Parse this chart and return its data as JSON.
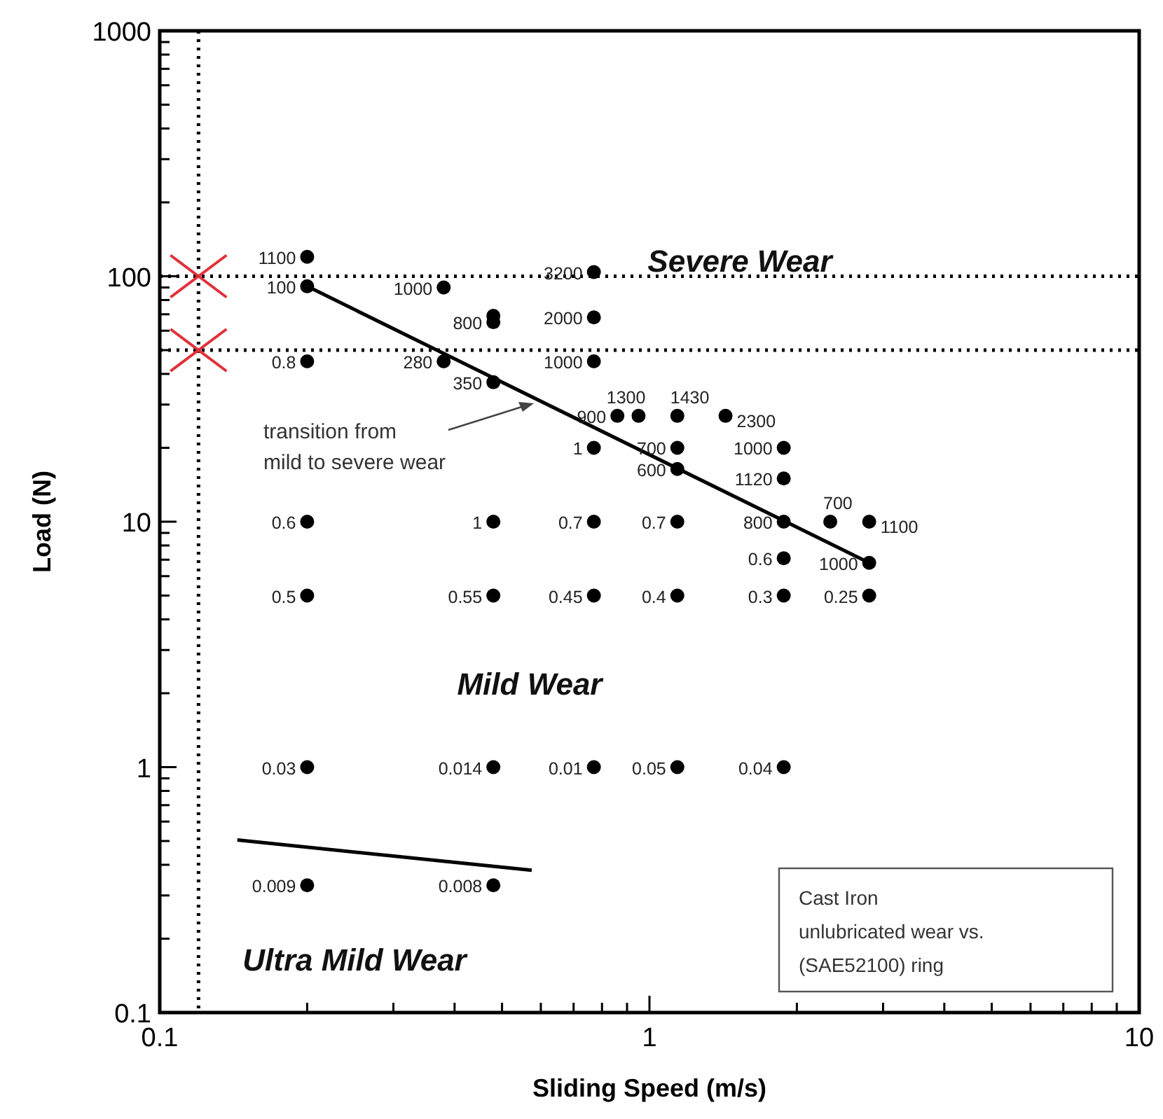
{
  "chart_data": {
    "type": "scatter",
    "xlabel": "Sliding Speed (m/s)",
    "ylabel": "Load (N)",
    "log": "xy",
    "grid": false,
    "marker": "circle",
    "xlim": [
      0.1,
      10
    ],
    "ylim": [
      0.1,
      1000
    ],
    "xticks": [
      0.1,
      {
        "value": 0.2,
        "label": null
      },
      {
        "value": 0.3,
        "label": null
      },
      {
        "value": 0.4,
        "label": null
      },
      {
        "value": 0.5,
        "label": null
      },
      {
        "value": 0.6,
        "label": null
      },
      {
        "value": 0.7,
        "label": null
      },
      {
        "value": 0.8,
        "label": null
      },
      {
        "value": 0.9,
        "label": null
      },
      1,
      {
        "value": 2,
        "label": null
      },
      {
        "value": 3,
        "label": null
      },
      {
        "value": 4,
        "label": null
      },
      {
        "value": 5,
        "label": null
      },
      {
        "value": 6,
        "label": null
      },
      {
        "value": 7,
        "label": null
      },
      {
        "value": 8,
        "label": null
      },
      {
        "value": 9,
        "label": null
      },
      10
    ],
    "yticks": [
      0.1,
      {
        "value": 0.2,
        "label": null
      },
      {
        "value": 0.3,
        "label": null
      },
      {
        "value": 0.4,
        "label": null
      },
      {
        "value": 0.5,
        "label": null
      },
      {
        "value": 0.6,
        "label": null
      },
      {
        "value": 0.7,
        "label": null
      },
      {
        "value": 0.8,
        "label": null
      },
      {
        "value": 0.9,
        "label": null
      },
      1,
      {
        "value": 2,
        "label": null
      },
      {
        "value": 3,
        "label": null
      },
      {
        "value": 4,
        "label": null
      },
      {
        "value": 5,
        "label": null
      },
      {
        "value": 6,
        "label": null
      },
      {
        "value": 7,
        "label": null
      },
      {
        "value": 8,
        "label": null
      },
      {
        "value": 9,
        "label": null
      },
      10,
      {
        "value": 20,
        "label": null
      },
      {
        "value": 30,
        "label": null
      },
      {
        "value": 40,
        "label": null
      },
      {
        "value": 50,
        "label": null
      },
      {
        "value": 60,
        "label": null
      },
      {
        "value": 70,
        "label": null
      },
      {
        "value": 80,
        "label": null
      },
      {
        "value": 90,
        "label": null
      },
      100,
      {
        "value": 200,
        "label": null
      },
      {
        "value": 300,
        "label": null
      },
      {
        "value": 400,
        "label": null
      },
      {
        "value": 500,
        "label": null
      },
      {
        "value": 600,
        "label": null
      },
      {
        "value": 700,
        "label": null
      },
      {
        "value": 800,
        "label": null
      },
      {
        "value": 900,
        "label": null
      },
      1000
    ],
    "series": [
      {
        "color": "#000000",
        "x": [
          0.2,
          0.2,
          0.2,
          0.2,
          0.2,
          0.2,
          0.2,
          0.38,
          0.38,
          0.48,
          0.48,
          0.48,
          0.48,
          0.48,
          0.48,
          0.48,
          0.77,
          0.77,
          0.77,
          0.77,
          0.77,
          0.77,
          0.77,
          0.86,
          0.95,
          1.14,
          1.14,
          1.14,
          1.14,
          1.14,
          1.14,
          1.43,
          1.88,
          1.88,
          1.88,
          1.88,
          1.88,
          1.88,
          2.34,
          2.81,
          2.81,
          2.81
        ],
        "values": [
          120,
          91,
          45,
          10,
          5,
          1,
          0.33,
          90,
          45,
          69,
          65,
          37,
          10,
          5,
          1,
          0.33,
          104,
          68,
          45,
          20,
          10,
          5,
          1,
          27,
          27,
          27,
          20,
          16.4,
          10,
          5,
          1,
          27,
          20,
          15,
          10,
          7.1,
          5,
          1,
          10,
          10,
          6.8,
          5
        ]
      },
      {
        "type": "line",
        "color": "#000000",
        "marker": "none",
        "x": [
          0.2,
          2.81
        ],
        "values": [
          91,
          6.8
        ]
      },
      {
        "type": "line",
        "color": "#000000",
        "marker": "none",
        "x": [
          0.144,
          0.575
        ],
        "values": [
          0.505,
          0.38
        ]
      }
    ],
    "ref_lines": [
      {
        "axis": "y",
        "value": 100,
        "line_style": "dotted",
        "color": "#000000"
      },
      {
        "axis": "y",
        "value": 50,
        "line_style": "dotted",
        "color": "#000000"
      },
      {
        "axis": "x",
        "value": 0.12,
        "line_style": "dotted",
        "color": "#000000"
      }
    ],
    "annotations": [
      "Severe Wear",
      "Mild Wear",
      "Ultra Mild Wear",
      "transition from mild to severe wear",
      "Cast Iron unlubricated wear vs. (SAE52100) ring",
      {
        "text": "1100",
        "x": 0.2,
        "y": 120
      },
      {
        "text": "100",
        "x": 0.2,
        "y": 91
      },
      {
        "text": "0.8",
        "x": 0.2,
        "y": 45
      },
      {
        "text": "0.6",
        "x": 0.2,
        "y": 10
      },
      {
        "text": "0.5",
        "x": 0.2,
        "y": 5
      },
      {
        "text": "0.03",
        "x": 0.2,
        "y": 1
      },
      {
        "text": "0.009",
        "x": 0.2,
        "y": 0.33
      },
      {
        "text": "1000",
        "x": 0.38,
        "y": 90
      },
      {
        "text": "280",
        "x": 0.38,
        "y": 45
      },
      {
        "text": "800",
        "x": 0.48,
        "y": 65
      },
      {
        "text": "350",
        "x": 0.48,
        "y": 37
      },
      {
        "text": "1",
        "x": 0.48,
        "y": 10
      },
      {
        "text": "0.55",
        "x": 0.48,
        "y": 5
      },
      {
        "text": "0.014",
        "x": 0.48,
        "y": 1
      },
      {
        "text": "0.008",
        "x": 0.48,
        "y": 0.33
      },
      {
        "text": "3200",
        "x": 0.77,
        "y": 104
      },
      {
        "text": "2000",
        "x": 0.77,
        "y": 68
      },
      {
        "text": "1000",
        "x": 0.77,
        "y": 45
      },
      {
        "text": "1",
        "x": 0.77,
        "y": 20
      },
      {
        "text": "0.7",
        "x": 0.77,
        "y": 10
      },
      {
        "text": "0.45",
        "x": 0.77,
        "y": 5
      },
      {
        "text": "0.01",
        "x": 0.77,
        "y": 1
      },
      {
        "text": "900",
        "x": 0.86,
        "y": 27
      },
      {
        "text": "1300",
        "x": 0.95,
        "y": 27
      },
      {
        "text": "1430",
        "x": 1.14,
        "y": 27
      },
      {
        "text": "700",
        "x": 1.14,
        "y": 20
      },
      {
        "text": "600",
        "x": 1.14,
        "y": 16.4
      },
      {
        "text": "0.7",
        "x": 1.14,
        "y": 10
      },
      {
        "text": "0.4",
        "x": 1.14,
        "y": 5
      },
      {
        "text": "0.05",
        "x": 1.14,
        "y": 1
      },
      {
        "text": "2300",
        "x": 1.43,
        "y": 27
      },
      {
        "text": "1000",
        "x": 1.88,
        "y": 20
      },
      {
        "text": "1120",
        "x": 1.88,
        "y": 15
      },
      {
        "text": "800",
        "x": 1.88,
        "y": 10
      },
      {
        "text": "0.6",
        "x": 1.88,
        "y": 7.1
      },
      {
        "text": "0.3",
        "x": 1.88,
        "y": 5
      },
      {
        "text": "0.04",
        "x": 1.88,
        "y": 1
      },
      {
        "text": "700",
        "x": 2.34,
        "y": 10
      },
      {
        "text": "1100",
        "x": 2.81,
        "y": 10
      },
      {
        "text": "1000",
        "x": 2.81,
        "y": 6.8
      },
      {
        "text": "0.25",
        "x": 2.81,
        "y": 5
      }
    ]
  }
}
